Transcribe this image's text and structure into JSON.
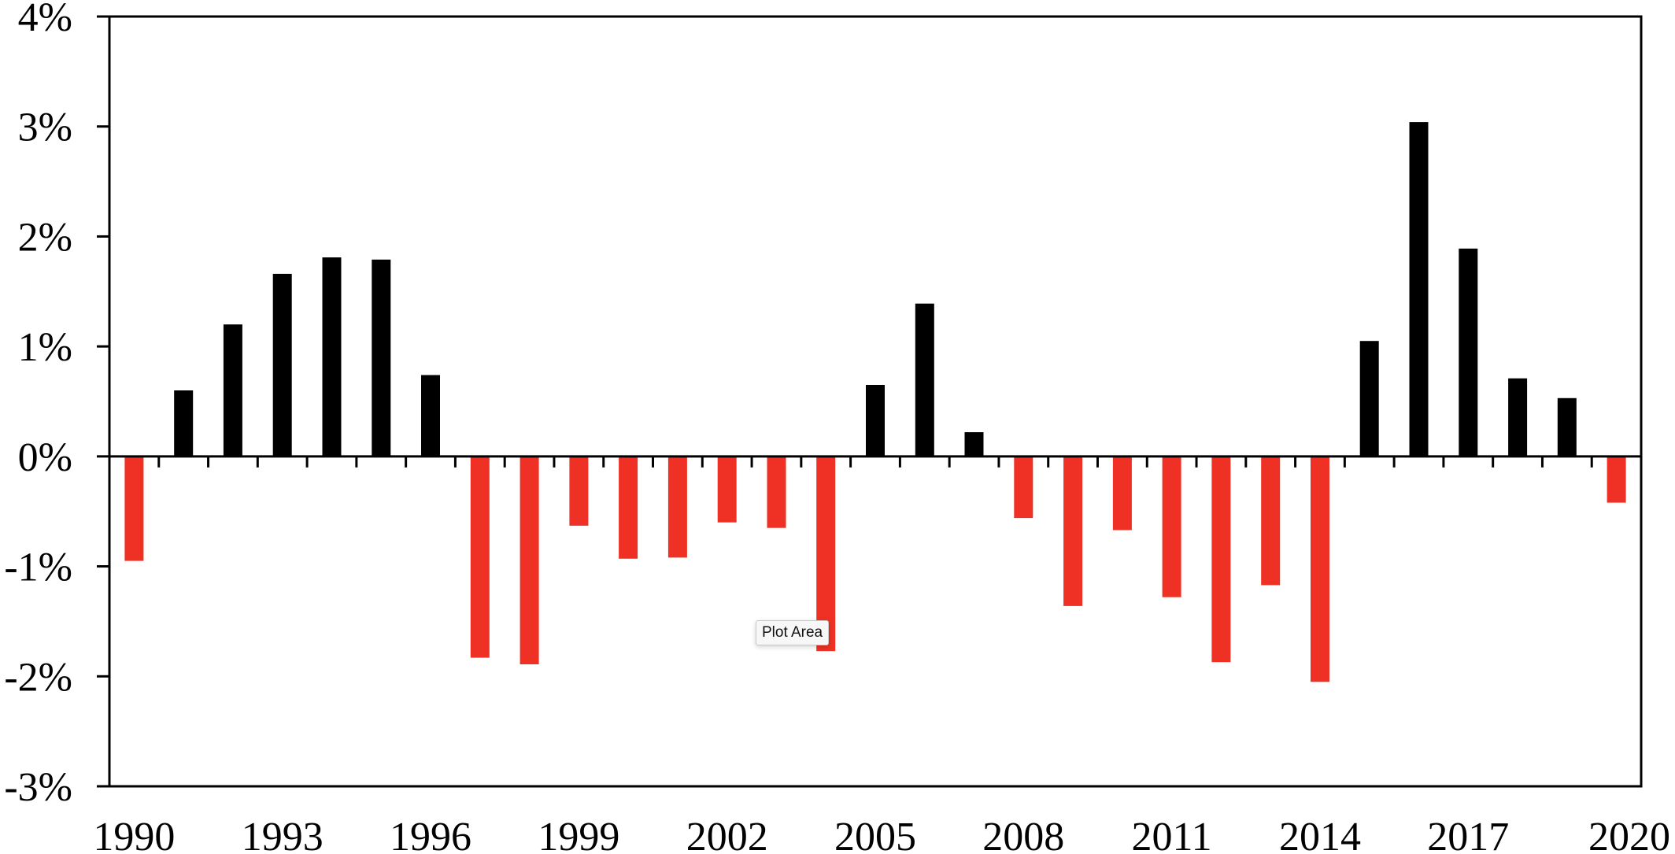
{
  "chart_data": {
    "type": "bar",
    "title": "",
    "xlabel": "",
    "ylabel": "",
    "x": [
      1990,
      1991,
      1992,
      1993,
      1994,
      1995,
      1996,
      1997,
      1998,
      1999,
      2000,
      2001,
      2002,
      2003,
      2004,
      2005,
      2006,
      2007,
      2008,
      2009,
      2010,
      2011,
      2012,
      2013,
      2014,
      2015,
      2016,
      2017,
      2018,
      2019,
      2020
    ],
    "values": [
      -0.95,
      0.6,
      1.2,
      1.66,
      1.81,
      1.79,
      0.74,
      -1.83,
      -1.89,
      -0.63,
      -0.93,
      -0.92,
      -0.6,
      -0.65,
      -1.77,
      0.65,
      1.39,
      0.22,
      -0.56,
      -1.36,
      -0.67,
      -1.28,
      -1.87,
      -1.17,
      -2.05,
      1.05,
      3.04,
      1.89,
      0.71,
      0.53,
      -0.42
    ],
    "ylim": [
      -3,
      4
    ],
    "y_ticks": [
      4,
      3,
      2,
      1,
      0,
      -1,
      -2,
      -3
    ],
    "y_tick_labels": [
      "4%",
      "3%",
      "2%",
      "1%",
      "0%",
      "-1%",
      "-2%",
      "-3%"
    ],
    "x_tick_labels": [
      "1990",
      "1993",
      "1996",
      "1999",
      "2002",
      "2005",
      "2008",
      "2011",
      "2014",
      "2017",
      "2020"
    ],
    "positive_color": "#000000",
    "negative_color": "#EE3124",
    "grid": false,
    "legend": "none"
  },
  "tooltip": {
    "label": "Plot Area"
  }
}
